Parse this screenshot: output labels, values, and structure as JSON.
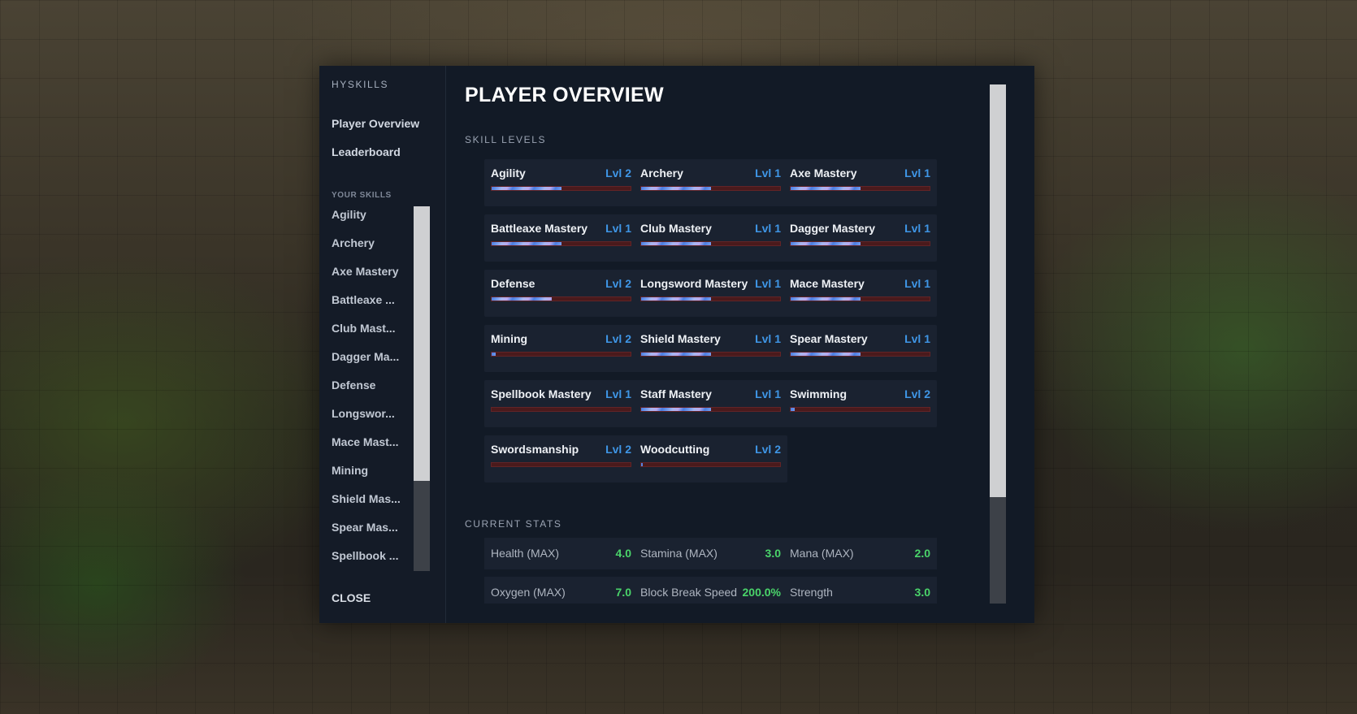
{
  "sidebar": {
    "brand": "HYSKILLS",
    "nav": [
      "Player Overview",
      "Leaderboard"
    ],
    "your_skills_label": "YOUR SKILLS",
    "skills": [
      "Agility",
      "Archery",
      "Axe Mastery",
      "Battleaxe ...",
      "Club Mast...",
      "Dagger Ma...",
      "Defense",
      "Longswor...",
      "Mace Mast...",
      "Mining",
      "Shield Mas...",
      "Spear Mas...",
      "Spellbook ..."
    ],
    "close_label": "CLOSE"
  },
  "main": {
    "title": "PLAYER OVERVIEW",
    "skill_levels_label": "SKILL LEVELS",
    "current_stats_label": "CURRENT STATS",
    "skill_cards": [
      {
        "name": "Agility",
        "level": "Lvl 2",
        "progress": 0.5
      },
      {
        "name": "Archery",
        "level": "Lvl 1",
        "progress": 0.5
      },
      {
        "name": "Axe Mastery",
        "level": "Lvl 1",
        "progress": 0.5
      },
      {
        "name": "Battleaxe Mastery",
        "level": "Lvl 1",
        "progress": 0.5
      },
      {
        "name": "Club Mastery",
        "level": "Lvl 1",
        "progress": 0.5
      },
      {
        "name": "Dagger Mastery",
        "level": "Lvl 1",
        "progress": 0.5
      },
      {
        "name": "Defense",
        "level": "Lvl 2",
        "progress": 0.43
      },
      {
        "name": "Longsword Mastery",
        "level": "Lvl 1",
        "progress": 0.5
      },
      {
        "name": "Mace Mastery",
        "level": "Lvl 1",
        "progress": 0.5
      },
      {
        "name": "Mining",
        "level": "Lvl 2",
        "progress": 0.03
      },
      {
        "name": "Shield Mastery",
        "level": "Lvl 1",
        "progress": 0.5
      },
      {
        "name": "Spear Mastery",
        "level": "Lvl 1",
        "progress": 0.5
      },
      {
        "name": "Spellbook Mastery",
        "level": "Lvl 1",
        "progress": 0.0
      },
      {
        "name": "Staff Mastery",
        "level": "Lvl 1",
        "progress": 0.5
      },
      {
        "name": "Swimming",
        "level": "Lvl 2",
        "progress": 0.03
      },
      {
        "name": "Swordsmanship",
        "level": "Lvl 2",
        "progress": 0.0
      },
      {
        "name": "Woodcutting",
        "level": "Lvl 2",
        "progress": 0.01
      }
    ],
    "stats": [
      {
        "name": "Health (MAX)",
        "value": "4.0"
      },
      {
        "name": "Stamina (MAX)",
        "value": "3.0"
      },
      {
        "name": "Mana (MAX)",
        "value": "2.0"
      },
      {
        "name": "Oxygen (MAX)",
        "value": "7.0"
      },
      {
        "name": "Block Break Speed",
        "value": "200.0%"
      },
      {
        "name": "Strength",
        "value": "3.0"
      }
    ]
  },
  "colors": {
    "level_text": "#3f96e6",
    "stat_value": "#4ad46a",
    "bar_track": "#4a1a1c"
  }
}
